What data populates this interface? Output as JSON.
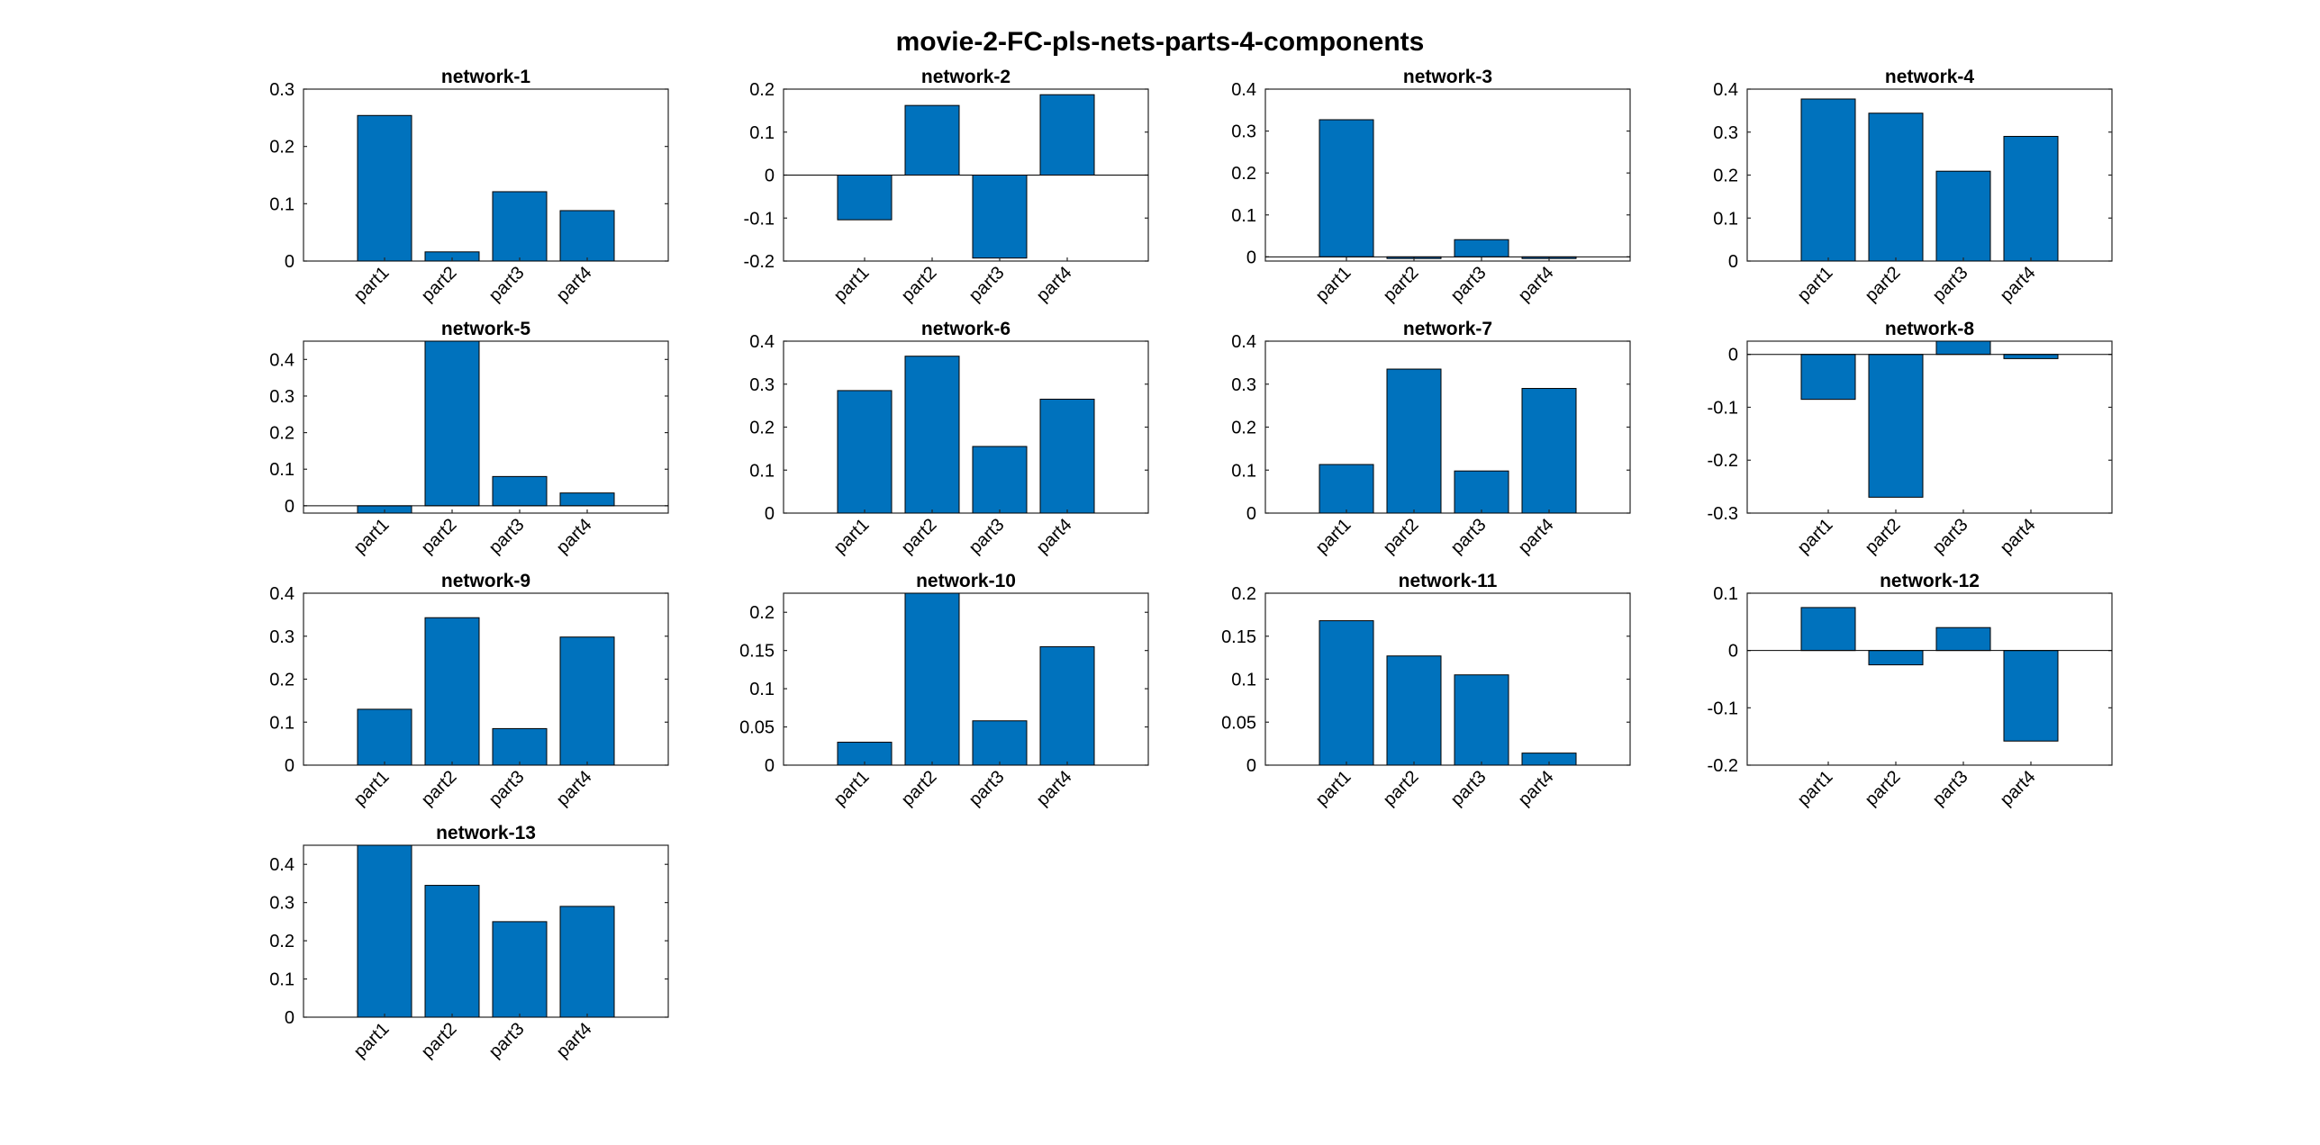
{
  "figure": {
    "title": "movie-2-FC-pls-nets-parts-4-components",
    "bar_color": "#0072BD"
  },
  "chart_data": [
    {
      "type": "bar",
      "title": "network-1",
      "categories": [
        "part1",
        "part2",
        "part3",
        "part4"
      ],
      "values": [
        0.254,
        0.016,
        0.121,
        0.088
      ],
      "ylim": [
        0,
        0.3
      ],
      "yticks": [
        0,
        0.1,
        0.2,
        0.3
      ],
      "ytick_labels": [
        "0",
        "0.1",
        "0.2",
        "0.3"
      ]
    },
    {
      "type": "bar",
      "title": "network-2",
      "categories": [
        "part1",
        "part2",
        "part3",
        "part4"
      ],
      "values": [
        -0.104,
        0.162,
        -0.193,
        0.187
      ],
      "ylim": [
        -0.2,
        0.2
      ],
      "yticks": [
        -0.2,
        -0.1,
        0,
        0.1,
        0.2
      ],
      "ytick_labels": [
        "-0.2",
        "-0.1",
        "0",
        "0.1",
        "0.2"
      ]
    },
    {
      "type": "bar",
      "title": "network-3",
      "categories": [
        "part1",
        "part2",
        "part3",
        "part4"
      ],
      "values": [
        0.327,
        -0.004,
        0.041,
        -0.004
      ],
      "ylim": [
        -0.01,
        0.4
      ],
      "yticks": [
        0,
        0.1,
        0.2,
        0.3,
        0.4
      ],
      "ytick_labels": [
        "0",
        "0.1",
        "0.2",
        "0.3",
        "0.4"
      ]
    },
    {
      "type": "bar",
      "title": "network-4",
      "categories": [
        "part1",
        "part2",
        "part3",
        "part4"
      ],
      "values": [
        0.377,
        0.344,
        0.209,
        0.29
      ],
      "ylim": [
        0,
        0.4
      ],
      "yticks": [
        0,
        0.1,
        0.2,
        0.3,
        0.4
      ],
      "ytick_labels": [
        "0",
        "0.1",
        "0.2",
        "0.3",
        "0.4"
      ]
    },
    {
      "type": "bar",
      "title": "network-5",
      "categories": [
        "part1",
        "part2",
        "part3",
        "part4"
      ],
      "values": [
        -0.02,
        0.45,
        0.08,
        0.035
      ],
      "ylim": [
        -0.02,
        0.45
      ],
      "yticks": [
        0,
        0.1,
        0.2,
        0.3,
        0.4
      ],
      "ytick_labels": [
        "0",
        "0.1",
        "0.2",
        "0.3",
        "0.4"
      ]
    },
    {
      "type": "bar",
      "title": "network-6",
      "categories": [
        "part1",
        "part2",
        "part3",
        "part4"
      ],
      "values": [
        0.285,
        0.365,
        0.155,
        0.265
      ],
      "ylim": [
        0,
        0.4
      ],
      "yticks": [
        0,
        0.1,
        0.2,
        0.3,
        0.4
      ],
      "ytick_labels": [
        "0",
        "0.1",
        "0.2",
        "0.3",
        "0.4"
      ]
    },
    {
      "type": "bar",
      "title": "network-7",
      "categories": [
        "part1",
        "part2",
        "part3",
        "part4"
      ],
      "values": [
        0.113,
        0.335,
        0.098,
        0.29
      ],
      "ylim": [
        0,
        0.4
      ],
      "yticks": [
        0,
        0.1,
        0.2,
        0.3,
        0.4
      ],
      "ytick_labels": [
        "0",
        "0.1",
        "0.2",
        "0.3",
        "0.4"
      ]
    },
    {
      "type": "bar",
      "title": "network-8",
      "categories": [
        "part1",
        "part2",
        "part3",
        "part4"
      ],
      "values": [
        -0.085,
        -0.27,
        0.025,
        -0.008
      ],
      "ylim": [
        -0.3,
        0.025
      ],
      "yticks": [
        -0.3,
        -0.2,
        -0.1,
        0
      ],
      "ytick_labels": [
        "-0.3",
        "-0.2",
        "-0.1",
        "0"
      ]
    },
    {
      "type": "bar",
      "title": "network-9",
      "categories": [
        "part1",
        "part2",
        "part3",
        "part4"
      ],
      "values": [
        0.13,
        0.343,
        0.085,
        0.298
      ],
      "ylim": [
        0,
        0.4
      ],
      "yticks": [
        0,
        0.1,
        0.2,
        0.3,
        0.4
      ],
      "ytick_labels": [
        "0",
        "0.1",
        "0.2",
        "0.3",
        "0.4"
      ]
    },
    {
      "type": "bar",
      "title": "network-10",
      "categories": [
        "part1",
        "part2",
        "part3",
        "part4"
      ],
      "values": [
        0.03,
        0.225,
        0.058,
        0.155
      ],
      "ylim": [
        0,
        0.225
      ],
      "yticks": [
        0,
        0.05,
        0.1,
        0.15,
        0.2
      ],
      "ytick_labels": [
        "0",
        "0.05",
        "0.1",
        "0.15",
        "0.2"
      ]
    },
    {
      "type": "bar",
      "title": "network-11",
      "categories": [
        "part1",
        "part2",
        "part3",
        "part4"
      ],
      "values": [
        0.168,
        0.127,
        0.105,
        0.014
      ],
      "ylim": [
        0,
        0.2
      ],
      "yticks": [
        0,
        0.05,
        0.1,
        0.15,
        0.2
      ],
      "ytick_labels": [
        "0",
        "0.05",
        "0.1",
        "0.15",
        "0.2"
      ]
    },
    {
      "type": "bar",
      "title": "network-12",
      "categories": [
        "part1",
        "part2",
        "part3",
        "part4"
      ],
      "values": [
        0.075,
        -0.025,
        0.04,
        -0.158
      ],
      "ylim": [
        -0.2,
        0.1
      ],
      "yticks": [
        -0.2,
        -0.1,
        0,
        0.1
      ],
      "ytick_labels": [
        "-0.2",
        "-0.1",
        "0",
        "0.1"
      ]
    },
    {
      "type": "bar",
      "title": "network-13",
      "categories": [
        "part1",
        "part2",
        "part3",
        "part4"
      ],
      "values": [
        0.45,
        0.345,
        0.25,
        0.29
      ],
      "ylim": [
        0,
        0.45
      ],
      "yticks": [
        0,
        0.1,
        0.2,
        0.3,
        0.4
      ],
      "ytick_labels": [
        "0",
        "0.1",
        "0.2",
        "0.3",
        "0.4"
      ]
    }
  ]
}
